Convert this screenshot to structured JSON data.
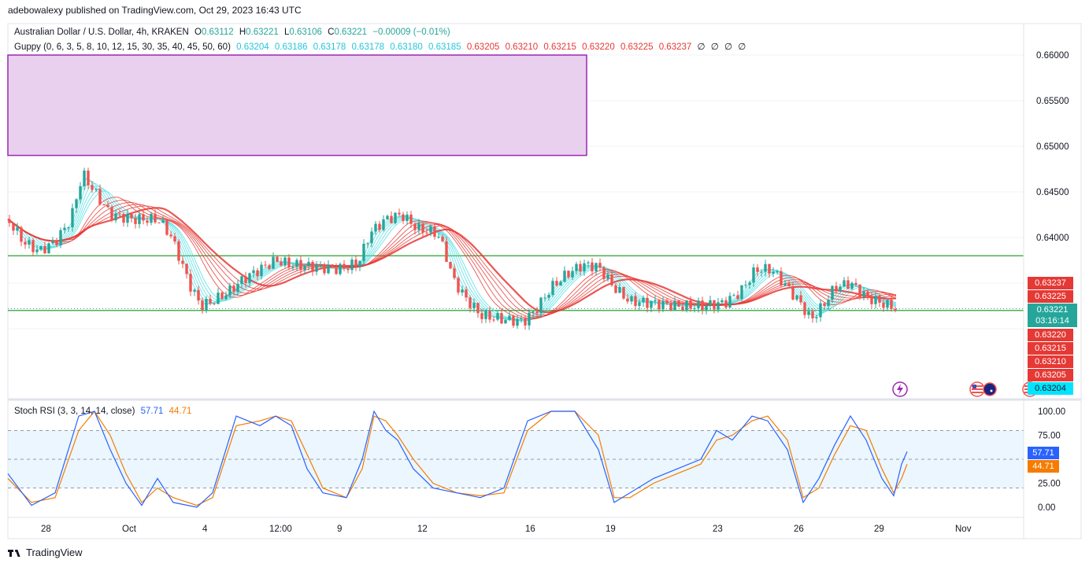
{
  "header": {
    "credit": "adebowalexy published on TradingView.com, Oct 29, 2023 16:43 UTC"
  },
  "legend": {
    "symbol": "Australian Dollar / U.S. Dollar, 4h, KRAKEN",
    "o_label": "O",
    "o_value": "0.63112",
    "h_label": "H",
    "h_value": "0.63221",
    "l_label": "L",
    "l_value": "0.63106",
    "c_label": "C",
    "c_value": "0.63221",
    "change": "−0.00009 (−0.01%)",
    "guppy_label": "Guppy (0, 6, 3, 5, 8, 10, 12, 15, 30, 35, 40, 45, 50, 60)",
    "guppy_fast": [
      "0.63204",
      "0.63186",
      "0.63178",
      "0.63178",
      "0.63180",
      "0.63185"
    ],
    "guppy_slow": [
      "0.63205",
      "0.63210",
      "0.63215",
      "0.63220",
      "0.63225",
      "0.63237"
    ],
    "guppy_empty": [
      "∅",
      "∅",
      "∅",
      "∅"
    ]
  },
  "stoch": {
    "label": "Stoch RSI (3, 3, 14, 14, close)",
    "k_value": "57.71",
    "d_value": "44.71"
  },
  "colors": {
    "up": "#26a69a",
    "down": "#ef5350",
    "fast_ema": "#5de0e6",
    "slow_ema": "#e53935",
    "zone": "#e9d0ef",
    "zone_border": "#9c27b0",
    "support": "#4caf50",
    "k_line": "#2962ff",
    "d_line": "#f57c00"
  },
  "price_axis": [
    "0.66000",
    "0.65500",
    "0.65000",
    "0.64500",
    "0.64000"
  ],
  "price_labels": {
    "slow": [
      "0.63237",
      "0.63225",
      "0.63220",
      "0.63215",
      "0.63210",
      "0.63205"
    ],
    "current": "0.63221",
    "countdown": "03:16:14",
    "fast": "0.63204"
  },
  "stoch_axis": [
    "100.00",
    "75.00",
    "25.00",
    "0.00"
  ],
  "time_axis": [
    "28",
    "Oct",
    "4",
    "12:00",
    "9",
    "12",
    "16",
    "19",
    "23",
    "26",
    "29",
    "Nov"
  ],
  "footer": {
    "brand": "TradingView"
  },
  "chart_data": {
    "type": "line",
    "subtype": "candlestick-with-indicators",
    "pair": "AUD/USD",
    "timeframe": "4h",
    "ylim": [
      0.628,
      0.662
    ],
    "resistance_zone": [
      0.649,
      0.66
    ],
    "horizontal_levels": [
      0.638,
      0.632
    ],
    "price_path": [
      [
        0,
        0.642
      ],
      [
        20,
        0.6395
      ],
      [
        40,
        0.6385
      ],
      [
        60,
        0.6395
      ],
      [
        80,
        0.642
      ],
      [
        95,
        0.647
      ],
      [
        110,
        0.645
      ],
      [
        130,
        0.6425
      ],
      [
        160,
        0.642
      ],
      [
        190,
        0.642
      ],
      [
        205,
        0.6405
      ],
      [
        215,
        0.6385
      ],
      [
        230,
        0.635
      ],
      [
        245,
        0.6325
      ],
      [
        260,
        0.633
      ],
      [
        280,
        0.634
      ],
      [
        300,
        0.6355
      ],
      [
        320,
        0.6365
      ],
      [
        340,
        0.6375
      ],
      [
        360,
        0.637
      ],
      [
        390,
        0.6368
      ],
      [
        420,
        0.6365
      ],
      [
        445,
        0.6372
      ],
      [
        460,
        0.6405
      ],
      [
        480,
        0.642
      ],
      [
        500,
        0.6425
      ],
      [
        520,
        0.641
      ],
      [
        545,
        0.6405
      ],
      [
        555,
        0.6385
      ],
      [
        565,
        0.6355
      ],
      [
        580,
        0.6335
      ],
      [
        600,
        0.6315
      ],
      [
        630,
        0.631
      ],
      [
        655,
        0.6308
      ],
      [
        670,
        0.632
      ],
      [
        690,
        0.6345
      ],
      [
        710,
        0.636
      ],
      [
        730,
        0.637
      ],
      [
        750,
        0.6368
      ],
      [
        770,
        0.6345
      ],
      [
        790,
        0.633
      ],
      [
        820,
        0.6328
      ],
      [
        850,
        0.6325
      ],
      [
        880,
        0.6325
      ],
      [
        910,
        0.6328
      ],
      [
        930,
        0.634
      ],
      [
        950,
        0.6365
      ],
      [
        970,
        0.6365
      ],
      [
        990,
        0.6345
      ],
      [
        1005,
        0.633
      ],
      [
        1020,
        0.631
      ],
      [
        1035,
        0.6325
      ],
      [
        1050,
        0.6345
      ],
      [
        1070,
        0.635
      ],
      [
        1090,
        0.6335
      ],
      [
        1110,
        0.6328
      ],
      [
        1130,
        0.6322
      ]
    ],
    "stoch_k": [
      [
        0,
        35
      ],
      [
        30,
        2
      ],
      [
        60,
        15
      ],
      [
        90,
        95
      ],
      [
        110,
        100
      ],
      [
        130,
        60
      ],
      [
        150,
        25
      ],
      [
        170,
        2
      ],
      [
        190,
        30
      ],
      [
        210,
        5
      ],
      [
        240,
        0
      ],
      [
        260,
        15
      ],
      [
        290,
        95
      ],
      [
        320,
        85
      ],
      [
        340,
        95
      ],
      [
        360,
        85
      ],
      [
        380,
        40
      ],
      [
        400,
        15
      ],
      [
        430,
        10
      ],
      [
        450,
        50
      ],
      [
        465,
        100
      ],
      [
        480,
        80
      ],
      [
        495,
        70
      ],
      [
        515,
        40
      ],
      [
        540,
        20
      ],
      [
        570,
        15
      ],
      [
        600,
        10
      ],
      [
        630,
        20
      ],
      [
        660,
        90
      ],
      [
        690,
        100
      ],
      [
        720,
        100
      ],
      [
        750,
        60
      ],
      [
        770,
        5
      ],
      [
        790,
        15
      ],
      [
        820,
        30
      ],
      [
        850,
        40
      ],
      [
        880,
        50
      ],
      [
        900,
        80
      ],
      [
        920,
        70
      ],
      [
        945,
        95
      ],
      [
        965,
        90
      ],
      [
        990,
        60
      ],
      [
        1010,
        5
      ],
      [
        1030,
        30
      ],
      [
        1050,
        65
      ],
      [
        1070,
        95
      ],
      [
        1090,
        70
      ],
      [
        1110,
        30
      ],
      [
        1125,
        12
      ],
      [
        1135,
        45
      ],
      [
        1142,
        58
      ]
    ],
    "stoch_d": [
      [
        0,
        30
      ],
      [
        30,
        5
      ],
      [
        60,
        10
      ],
      [
        90,
        80
      ],
      [
        110,
        100
      ],
      [
        130,
        75
      ],
      [
        150,
        35
      ],
      [
        170,
        5
      ],
      [
        190,
        20
      ],
      [
        210,
        10
      ],
      [
        240,
        2
      ],
      [
        260,
        10
      ],
      [
        290,
        85
      ],
      [
        320,
        90
      ],
      [
        340,
        95
      ],
      [
        360,
        90
      ],
      [
        380,
        55
      ],
      [
        400,
        20
      ],
      [
        430,
        10
      ],
      [
        450,
        40
      ],
      [
        465,
        95
      ],
      [
        480,
        90
      ],
      [
        495,
        75
      ],
      [
        515,
        50
      ],
      [
        540,
        25
      ],
      [
        570,
        15
      ],
      [
        600,
        12
      ],
      [
        630,
        15
      ],
      [
        660,
        80
      ],
      [
        690,
        100
      ],
      [
        720,
        100
      ],
      [
        750,
        75
      ],
      [
        770,
        10
      ],
      [
        790,
        10
      ],
      [
        820,
        25
      ],
      [
        850,
        35
      ],
      [
        880,
        45
      ],
      [
        900,
        70
      ],
      [
        920,
        75
      ],
      [
        945,
        90
      ],
      [
        965,
        95
      ],
      [
        990,
        70
      ],
      [
        1010,
        10
      ],
      [
        1030,
        20
      ],
      [
        1050,
        55
      ],
      [
        1070,
        85
      ],
      [
        1090,
        80
      ],
      [
        1110,
        40
      ],
      [
        1125,
        15
      ],
      [
        1135,
        30
      ],
      [
        1142,
        45
      ]
    ]
  }
}
